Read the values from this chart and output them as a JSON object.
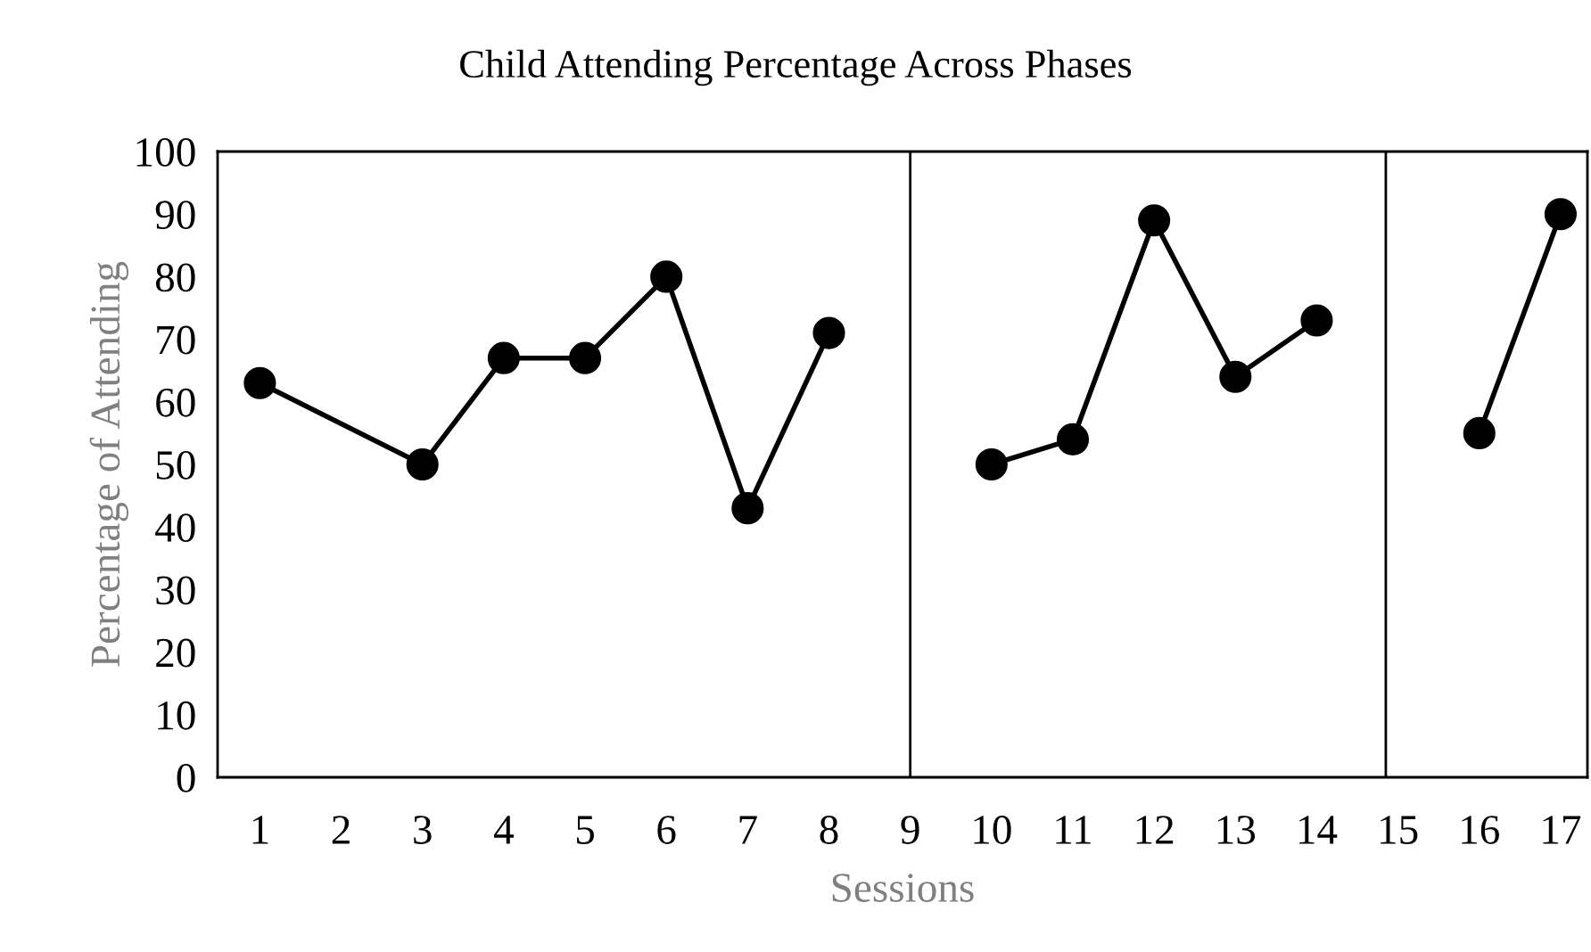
{
  "chart_data": {
    "type": "line",
    "title": "Child Attending Percentage Across Phases",
    "xlabel": "Sessions",
    "ylabel": "Percentage of Attending",
    "series": [
      {
        "color": "#000000",
        "x": [
          1,
          3,
          4,
          5,
          6,
          7,
          8
        ],
        "values": [
          63,
          50,
          67,
          67,
          80,
          43,
          71
        ]
      },
      {
        "color": "#000000",
        "x": [
          10,
          11,
          12,
          13,
          14
        ],
        "values": [
          50,
          54,
          89,
          64,
          73
        ]
      },
      {
        "color": "#000000",
        "x": [
          16,
          17
        ],
        "values": [
          55,
          90
        ]
      }
    ],
    "xlim": [
      0.48,
      17.33
    ],
    "xticks": [
      1,
      2,
      3,
      4,
      5,
      6,
      7,
      8,
      9,
      10,
      11,
      12,
      13,
      14,
      15,
      16,
      17
    ],
    "ylim": [
      0,
      100
    ],
    "yticks": [
      0,
      10,
      20,
      30,
      40,
      50,
      60,
      70,
      80,
      90,
      100
    ],
    "ref_lines": [
      {
        "axis": "x",
        "value": 9,
        "color": "#000000"
      },
      {
        "axis": "x",
        "value": 14.85,
        "color": "#000000"
      }
    ],
    "marker": "circle",
    "line_style": "solid",
    "grid": false,
    "legend": false
  }
}
